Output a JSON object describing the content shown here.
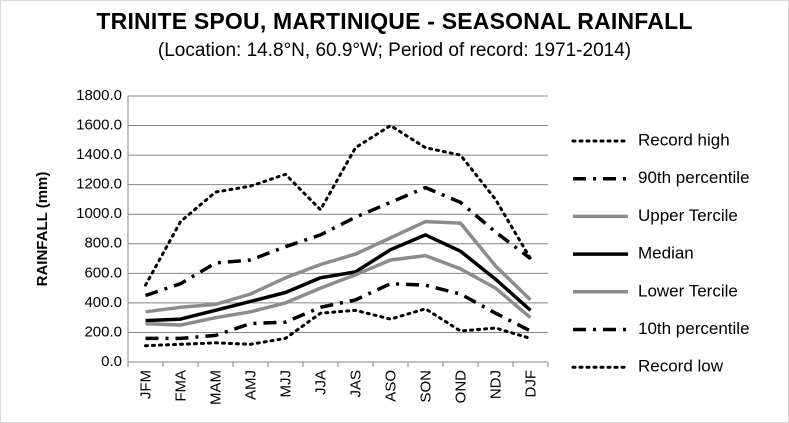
{
  "chart_data": {
    "type": "line",
    "title": "TRINITE SPOU, MARTINIQUE - SEASONAL RAINFALL",
    "subtitle": "(Location: 14.8°N, 60.9°W; Period of record: 1971-2014)",
    "xlabel": "",
    "ylabel": "RAINFALL (mm)",
    "ylim": [
      0,
      1800
    ],
    "yticks": [
      "0.0",
      "200.0",
      "400.0",
      "600.0",
      "800.0",
      "1000.0",
      "1200.0",
      "1400.0",
      "1600.0",
      "1800.0"
    ],
    "categories": [
      "JFM",
      "FMA",
      "MAM",
      "AMJ",
      "MJJ",
      "JJA",
      "JAS",
      "ASO",
      "SON",
      "OND",
      "NDJ",
      "DJF"
    ],
    "grid": true,
    "legend_position": "right",
    "series": [
      {
        "name": "Record high",
        "style": "dotted",
        "color": "#000000",
        "width": 3,
        "values": [
          520,
          950,
          1150,
          1190,
          1270,
          1030,
          1450,
          1600,
          1450,
          1400,
          1100,
          700
        ]
      },
      {
        "name": "90th percentile",
        "style": "dashdot",
        "color": "#000000",
        "width": 3.5,
        "values": [
          450,
          530,
          670,
          690,
          780,
          860,
          980,
          1080,
          1180,
          1080,
          880,
          700
        ]
      },
      {
        "name": "Upper Tercile",
        "style": "solid",
        "color": "#8c8c8c",
        "width": 3.5,
        "values": [
          340,
          370,
          390,
          460,
          570,
          660,
          730,
          840,
          950,
          940,
          650,
          420
        ]
      },
      {
        "name": "Median",
        "style": "solid",
        "color": "#000000",
        "width": 3.5,
        "values": [
          280,
          290,
          350,
          410,
          470,
          570,
          610,
          760,
          860,
          750,
          560,
          350
        ]
      },
      {
        "name": "Lower Tercile",
        "style": "solid",
        "color": "#8c8c8c",
        "width": 3.5,
        "values": [
          260,
          250,
          300,
          340,
          400,
          500,
          590,
          690,
          720,
          630,
          500,
          300
        ]
      },
      {
        "name": "10th percentile",
        "style": "dashdot",
        "color": "#000000",
        "width": 3.5,
        "values": [
          160,
          160,
          180,
          260,
          270,
          370,
          420,
          530,
          520,
          460,
          330,
          210
        ]
      },
      {
        "name": "Record low",
        "style": "dotted",
        "color": "#000000",
        "width": 3,
        "values": [
          110,
          120,
          130,
          120,
          160,
          330,
          350,
          290,
          360,
          210,
          230,
          160
        ]
      }
    ]
  }
}
